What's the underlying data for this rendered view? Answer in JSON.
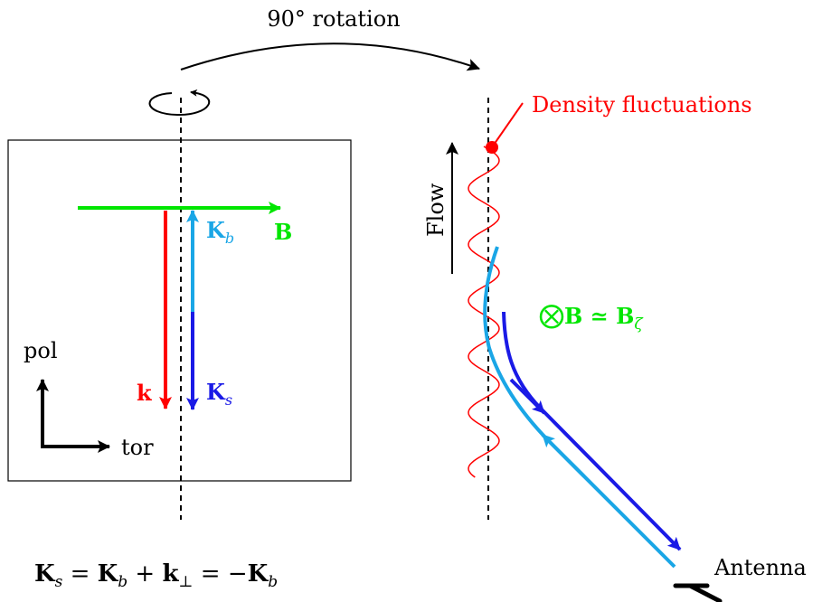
{
  "labels": {
    "rotation": "90° rotation",
    "density": "Density fluctuations",
    "flow": "Flow",
    "pol": "pol",
    "tor": "tor",
    "antenna": "Antenna",
    "B": "B",
    "k": "k",
    "Kb_main": "K",
    "Kb_sub": "b",
    "Ks_main": "K",
    "Ks_sub": "s",
    "otimes": "⨂",
    "Bzeta_main": "B ≃ B",
    "Bzeta_sub": "ζ",
    "eq": {
      "K": "K",
      "s": "s",
      "eq1": " = ",
      "b": "b",
      "plus": " + ",
      "k": "k",
      "perp": "⊥",
      "eq2": " = −"
    }
  },
  "colors": {
    "green": "#00e600",
    "red": "#ff0000",
    "lightblue": "#1aa6e6",
    "blue": "#1a1ae6",
    "black": "#000000"
  }
}
